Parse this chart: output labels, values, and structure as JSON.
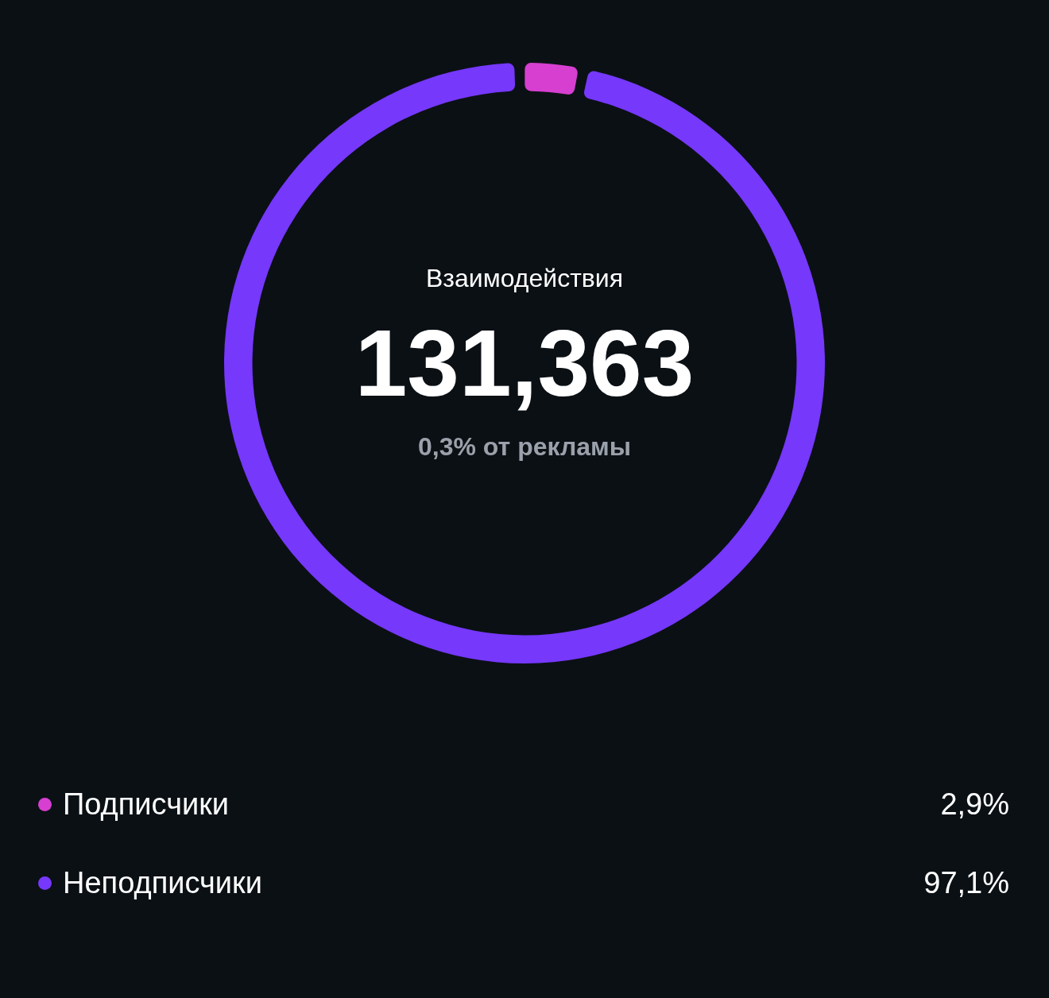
{
  "chart_data": {
    "type": "donut",
    "title": "Взаимодействия",
    "annotations": [
      "131,363",
      "0,3% от рекламы"
    ],
    "categories": [
      "Подписчики",
      "Неподписчики"
    ],
    "values": [
      2.9,
      97.1
    ],
    "colors": [
      "#d63fd0",
      "#7638fa"
    ],
    "value_labels": [
      "2,9%",
      "97,1%"
    ],
    "legend": "bottom"
  }
}
